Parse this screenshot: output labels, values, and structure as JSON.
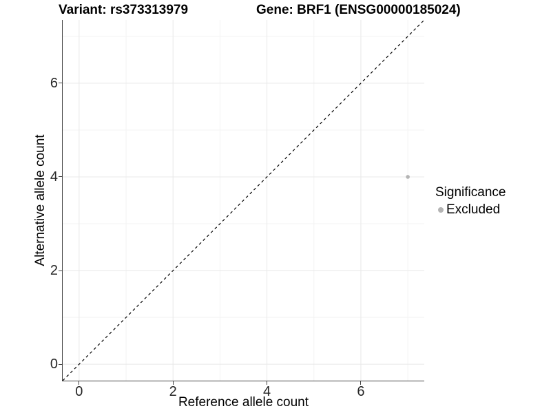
{
  "header": {
    "variant_title": "Variant: rs373313979",
    "gene_title": "Gene: BRF1 (ENSG00000185024)"
  },
  "chart_data": {
    "type": "scatter",
    "title": "Variant: rs373313979  Gene: BRF1 (ENSG00000185024)",
    "xlabel": "Reference allele count",
    "ylabel": "Alternative allele count",
    "xlim": [
      -0.35,
      7.35
    ],
    "ylim": [
      -0.35,
      7.35
    ],
    "x_ticks": [
      0,
      2,
      4,
      6
    ],
    "y_ticks": [
      0,
      2,
      4,
      6
    ],
    "x_minor_ticks": [
      1,
      3,
      5,
      7
    ],
    "y_minor_ticks": [
      1,
      3,
      5,
      7
    ],
    "grid": true,
    "points": [
      {
        "x": 7,
        "y": 4,
        "series": "Excluded"
      }
    ],
    "reference_line": {
      "slope": 1,
      "intercept": 0,
      "style": "dashed",
      "color": "#000000"
    },
    "legend": {
      "title": "Significance",
      "position": "right",
      "entries": [
        {
          "label": "Excluded",
          "color": "#b4b4b4",
          "marker": "circle"
        }
      ]
    }
  },
  "colors": {
    "point": "#b4b4b4",
    "grid_major": "#e8e8e8",
    "grid_minor": "#f3f3f3",
    "axis_line": "#404040",
    "tick_text": "#262626",
    "background": "#ffffff"
  }
}
